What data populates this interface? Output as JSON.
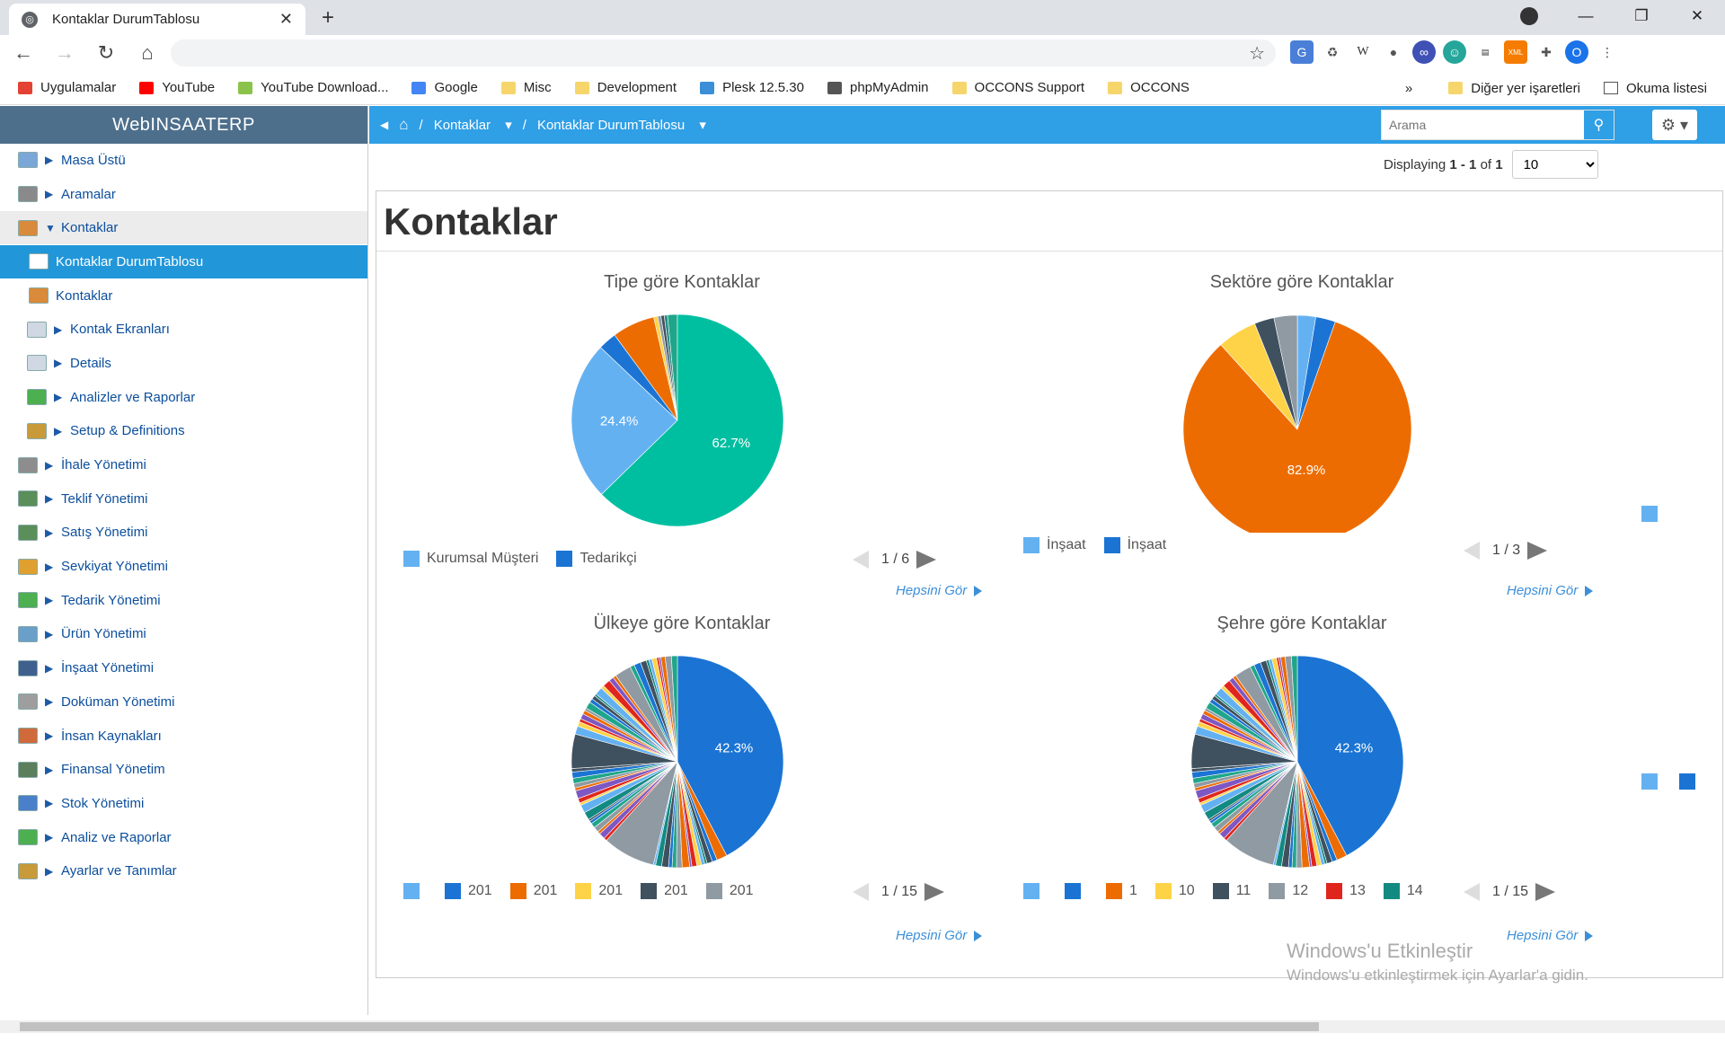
{
  "browser": {
    "tab_title": "Kontaklar DurumTablosu",
    "bookmarks": [
      {
        "label": "Uygulamalar",
        "color": "#e34133"
      },
      {
        "label": "YouTube",
        "color": "#ff0000"
      },
      {
        "label": "YouTube Download...",
        "color": "#8bc34a"
      },
      {
        "label": "Google",
        "color": "#4285f4"
      },
      {
        "label": "Misc",
        "color": "#f6d56b"
      },
      {
        "label": "Development",
        "color": "#f6d56b"
      },
      {
        "label": "Plesk 12.5.30",
        "color": "#3b8ed8"
      },
      {
        "label": "phpMyAdmin",
        "color": "#555555"
      },
      {
        "label": "OCCONS Support",
        "color": "#f6d56b"
      },
      {
        "label": "OCCONS",
        "color": "#f6d56b"
      }
    ],
    "bookmarks_more": "»",
    "other_bookmarks": "Diğer yer işaretleri",
    "reading_list": "Okuma listesi",
    "profile_initial": "O"
  },
  "app": {
    "brand": "WebINSAATERP",
    "sidebar": [
      {
        "label": "Masa Üstü",
        "indent": 0,
        "arrow": "right",
        "icon": "#7aa7d8"
      },
      {
        "label": "Aramalar",
        "indent": 0,
        "arrow": "right",
        "icon": "#8a8a8a"
      },
      {
        "label": "Kontaklar",
        "indent": 0,
        "arrow": "down",
        "icon": "#d98a3b",
        "state": "open"
      },
      {
        "label": "Kontaklar DurumTablosu",
        "indent": 1,
        "arrow": "",
        "icon": "#ffffff",
        "state": "active"
      },
      {
        "label": "Kontaklar",
        "indent": 1,
        "arrow": "",
        "icon": "#d98a3b"
      },
      {
        "label": "Kontak Ekranları",
        "indent": 1,
        "arrow": "right",
        "icon": "#cfd8e3"
      },
      {
        "label": "Details",
        "indent": 1,
        "arrow": "right",
        "icon": "#cfd8e3"
      },
      {
        "label": "Analizler ve Raporlar",
        "indent": 1,
        "arrow": "right",
        "icon": "#4caf50"
      },
      {
        "label": "Setup & Definitions",
        "indent": 1,
        "arrow": "right",
        "icon": "#c99a3a"
      },
      {
        "label": "İhale Yönetimi",
        "indent": 0,
        "arrow": "right",
        "icon": "#8d8d8d"
      },
      {
        "label": "Teklif Yönetimi",
        "indent": 0,
        "arrow": "right",
        "icon": "#5a8f5a"
      },
      {
        "label": "Satış Yönetimi",
        "indent": 0,
        "arrow": "right",
        "icon": "#5a8f5a"
      },
      {
        "label": "Sevkiyat Yönetimi",
        "indent": 0,
        "arrow": "right",
        "icon": "#e0a030"
      },
      {
        "label": "Tedarik Yönetimi",
        "indent": 0,
        "arrow": "right",
        "icon": "#4caf50"
      },
      {
        "label": "Ürün Yönetimi",
        "indent": 0,
        "arrow": "right",
        "icon": "#6a9fc9"
      },
      {
        "label": "İnşaat Yönetimi",
        "indent": 0,
        "arrow": "right",
        "icon": "#3f5f8f"
      },
      {
        "label": "Doküman Yönetimi",
        "indent": 0,
        "arrow": "right",
        "icon": "#9e9e9e"
      },
      {
        "label": "İnsan Kaynakları",
        "indent": 0,
        "arrow": "right",
        "icon": "#d06a3a"
      },
      {
        "label": "Finansal Yönetim",
        "indent": 0,
        "arrow": "right",
        "icon": "#5a7f5a"
      },
      {
        "label": "Stok Yönetimi",
        "indent": 0,
        "arrow": "right",
        "icon": "#4a7fc9"
      },
      {
        "label": "Analiz ve Raporlar",
        "indent": 0,
        "arrow": "right",
        "icon": "#4caf50"
      },
      {
        "label": "Ayarlar ve Tanımlar",
        "indent": 0,
        "arrow": "right",
        "icon": "#c99a3a"
      }
    ],
    "breadcrumb": {
      "sep": "/",
      "item1": "Kontaklar",
      "item2": "Kontaklar DurumTablosu"
    },
    "search_placeholder": "Arama",
    "pager": {
      "prefix": "Displaying",
      "range": "1 - 1",
      "of": "of",
      "total": "1",
      "page_size": "10"
    },
    "page_title": "Kontaklar",
    "see_all": "Hepsini Gör",
    "windows_activation": {
      "title": "Windows'u Etkinleştir",
      "subtitle": "Windows'u etkinleştirmek için Ayarlar'a gidin."
    }
  },
  "chart_data": [
    {
      "type": "pie",
      "title": "Tipe göre Kontaklar",
      "slices": [
        {
          "label": "Kurumsal Müşteri",
          "value": 24.4,
          "color": "#64b1f2",
          "show_label": true
        },
        {
          "label": "Tedarikçi",
          "value": 2.8,
          "color": "#1b74d3"
        },
        {
          "label": "",
          "value": 6.5,
          "color": "#ed6c02"
        },
        {
          "label": "",
          "value": 0.6,
          "color": "#ffd347"
        },
        {
          "label": "",
          "value": 0.5,
          "color": "#8f9aa3"
        },
        {
          "label": "",
          "value": 0.5,
          "color": "#3f505e"
        },
        {
          "label": "",
          "value": 0.5,
          "color": "#2c8c84"
        },
        {
          "label": "",
          "value": 1.5,
          "color": "#1fa68a"
        },
        {
          "label": "",
          "value": 62.7,
          "color": "#00bfa0",
          "show_label": true
        }
      ],
      "legend": [
        "Kurumsal Müşteri",
        "Tedarikçi"
      ],
      "legend_colors": [
        "#64b1f2",
        "#1b74d3"
      ],
      "page": "1 / 6"
    },
    {
      "type": "pie",
      "title": "Sektöre göre Kontaklar",
      "slices": [
        {
          "label": "İnşaat",
          "value": 2.6,
          "color": "#64b1f2"
        },
        {
          "label": "İnşaat",
          "value": 2.8,
          "color": "#1b74d3"
        },
        {
          "label": "",
          "value": 82.9,
          "color": "#ed6c02",
          "show_label": true
        },
        {
          "label": "",
          "value": 5.6,
          "color": "#ffd347"
        },
        {
          "label": "",
          "value": 2.8,
          "color": "#3f505e"
        },
        {
          "label": "",
          "value": 3.3,
          "color": "#8f9aa3"
        }
      ],
      "legend": [
        "İnşaat",
        "İnşaat"
      ],
      "legend_colors": [
        "#64b1f2",
        "#1b74d3"
      ],
      "page": "1 / 3"
    },
    {
      "type": "pie",
      "title": "Ülkeye göre Kontaklar",
      "slices_note": "many small slices",
      "main_value": 42.3,
      "legend": [
        "",
        "201",
        "201",
        "201",
        "201",
        "201"
      ],
      "legend_colors": [
        "#64b1f2",
        "#1b74d3",
        "#ed6c02",
        "#ffd347",
        "#3f505e",
        "#8f9aa3"
      ],
      "page": "1 / 15"
    },
    {
      "type": "pie",
      "title": "Şehre göre Kontaklar",
      "slices_note": "many small slices",
      "main_value": 42.3,
      "legend": [
        "",
        "",
        "1",
        "10",
        "11",
        "12",
        "13",
        "14"
      ],
      "legend_colors": [
        "#64b1f2",
        "#1b74d3",
        "#ed6c02",
        "#ffd347",
        "#3f505e",
        "#8f9aa3",
        "#e0261c",
        "#128a82"
      ],
      "page": "1 / 15"
    }
  ]
}
